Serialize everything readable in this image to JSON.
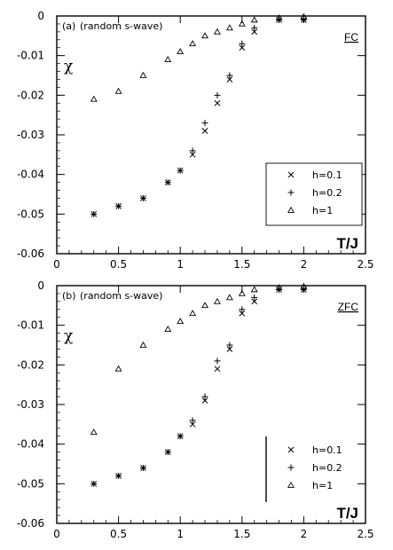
{
  "chart_data": [
    {
      "type": "scatter",
      "panel_label": "(a)",
      "subtitle": "(random s-wave)",
      "tag": "FC",
      "ylabel": "χ",
      "xlabel": "T/J",
      "xlim": [
        0,
        2.5
      ],
      "ylim": [
        -0.06,
        0
      ],
      "xticks": [
        "0",
        "0.5",
        "1",
        "1.5",
        "2",
        "2.5"
      ],
      "yticks": [
        "0",
        "-0.01",
        "-0.02",
        "-0.03",
        "-0.04",
        "-0.05",
        "-0.06"
      ],
      "legend_position": "bottom-right",
      "series": [
        {
          "name": "h=0.1",
          "marker": "x",
          "x": [
            0.3,
            0.5,
            0.7,
            0.9,
            1.0,
            1.1,
            1.2,
            1.3,
            1.4,
            1.5,
            1.6,
            1.8,
            2.0
          ],
          "y": [
            -0.05,
            -0.048,
            -0.046,
            -0.042,
            -0.039,
            -0.035,
            -0.029,
            -0.022,
            -0.016,
            -0.008,
            -0.004,
            -0.001,
            -0.001
          ]
        },
        {
          "name": "h=0.2",
          "marker": "+",
          "x": [
            0.3,
            0.5,
            0.7,
            0.9,
            1.0,
            1.1,
            1.2,
            1.3,
            1.4,
            1.5,
            1.6,
            1.8,
            2.0
          ],
          "y": [
            -0.05,
            -0.048,
            -0.046,
            -0.042,
            -0.039,
            -0.034,
            -0.027,
            -0.02,
            -0.015,
            -0.007,
            -0.003,
            -0.001,
            -0.001
          ]
        },
        {
          "name": "h=1",
          "marker": "triangle",
          "x": [
            0.3,
            0.5,
            0.7,
            0.9,
            1.0,
            1.1,
            1.2,
            1.3,
            1.4,
            1.5,
            1.6,
            1.8,
            2.0
          ],
          "y": [
            -0.021,
            -0.019,
            -0.015,
            -0.011,
            -0.009,
            -0.007,
            -0.005,
            -0.004,
            -0.003,
            -0.002,
            -0.001,
            -0.0005,
            -0.0002
          ]
        }
      ]
    },
    {
      "type": "scatter",
      "panel_label": "(b)",
      "subtitle": "(random s-wave)",
      "tag": "ZFC",
      "ylabel": "χ",
      "xlabel": "T/J",
      "xlim": [
        0,
        2.5
      ],
      "ylim": [
        -0.06,
        0
      ],
      "xticks": [
        "0",
        "0.5",
        "1",
        "1.5",
        "2",
        "2.5"
      ],
      "yticks": [
        "0",
        "-0.01",
        "-0.02",
        "-0.03",
        "-0.04",
        "-0.05",
        "-0.06"
      ],
      "legend_position": "bottom-right",
      "series": [
        {
          "name": "h=0.1",
          "marker": "x",
          "x": [
            0.3,
            0.5,
            0.7,
            0.9,
            1.0,
            1.1,
            1.2,
            1.3,
            1.4,
            1.5,
            1.6,
            1.8,
            2.0
          ],
          "y": [
            -0.05,
            -0.048,
            -0.046,
            -0.042,
            -0.038,
            -0.035,
            -0.029,
            -0.021,
            -0.016,
            -0.007,
            -0.004,
            -0.001,
            -0.001
          ]
        },
        {
          "name": "h=0.2",
          "marker": "+",
          "x": [
            0.3,
            0.5,
            0.7,
            0.9,
            1.0,
            1.1,
            1.2,
            1.3,
            1.4,
            1.5,
            1.6,
            1.8,
            2.0
          ],
          "y": [
            -0.05,
            -0.048,
            -0.046,
            -0.042,
            -0.038,
            -0.034,
            -0.028,
            -0.019,
            -0.015,
            -0.006,
            -0.003,
            -0.001,
            -0.001
          ]
        },
        {
          "name": "h=1",
          "marker": "triangle",
          "x": [
            0.3,
            0.5,
            0.7,
            0.9,
            1.0,
            1.1,
            1.2,
            1.3,
            1.4,
            1.5,
            1.6,
            1.8,
            2.0
          ],
          "y": [
            -0.037,
            -0.021,
            -0.015,
            -0.011,
            -0.009,
            -0.007,
            -0.005,
            -0.004,
            -0.003,
            -0.002,
            -0.001,
            -0.0005,
            -0.0002
          ]
        }
      ]
    }
  ]
}
